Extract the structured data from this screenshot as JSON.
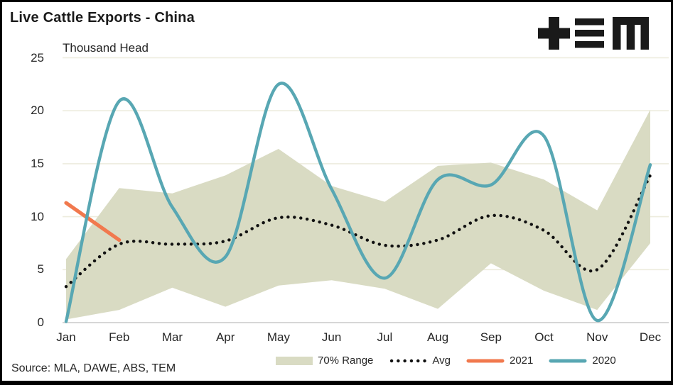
{
  "header": {
    "title": "Live Cattle Exports - China",
    "subtitle": "Thousand Head",
    "logo_name": "TEM"
  },
  "source_text": "Source: MLA, DAWE, ABS, TEM",
  "legend": [
    {
      "label": "70% Range",
      "type": "area",
      "color": "#D9DBC3"
    },
    {
      "label": "Avg",
      "type": "dotted",
      "color": "#111111"
    },
    {
      "label": "2021",
      "type": "line",
      "color": "#F1794E"
    },
    {
      "label": "2020",
      "type": "line",
      "color": "#58A7B3"
    }
  ],
  "colors": {
    "band": "#D9DBC3",
    "avg": "#111111",
    "y2021": "#F1794E",
    "y2020": "#58A7B3",
    "gridline": "#EDECDE",
    "axisline": "#D7D7D7",
    "text": "#262626",
    "logo": "#1a1a1a"
  },
  "chart_data": {
    "type": "line",
    "title": "Live Cattle Exports - China",
    "xlabel": "",
    "ylabel": "Thousand Head",
    "ylim": [
      0,
      25
    ],
    "yticks": [
      0,
      5,
      10,
      15,
      20,
      25
    ],
    "grid": true,
    "legend_position": "bottom",
    "categories": [
      "Jan",
      "Feb",
      "Mar",
      "Apr",
      "May",
      "Jun",
      "Jul",
      "Aug",
      "Sep",
      "Oct",
      "Nov",
      "Dec"
    ],
    "band": {
      "name": "70% Range",
      "upper": [
        6.0,
        12.7,
        12.2,
        13.9,
        16.4,
        12.9,
        11.4,
        14.8,
        15.1,
        13.5,
        10.6,
        20.1
      ],
      "lower": [
        0.3,
        1.2,
        3.3,
        1.5,
        3.5,
        4.0,
        3.2,
        1.3,
        5.6,
        3.0,
        1.2,
        7.5
      ]
    },
    "series": [
      {
        "name": "Avg",
        "style": "dotted",
        "values": [
          3.4,
          7.4,
          7.4,
          7.7,
          9.9,
          9.2,
          7.3,
          7.8,
          10.1,
          8.7,
          5.0,
          13.9
        ]
      },
      {
        "name": "2021",
        "style": "solid",
        "values": [
          11.3,
          7.8,
          null,
          null,
          null,
          null,
          null,
          null,
          null,
          null,
          null,
          null
        ]
      },
      {
        "name": "2020",
        "style": "solid",
        "values": [
          0.1,
          20.9,
          10.9,
          6.2,
          22.5,
          12.6,
          4.2,
          13.5,
          13.0,
          17.6,
          0.2,
          14.9
        ]
      }
    ]
  }
}
